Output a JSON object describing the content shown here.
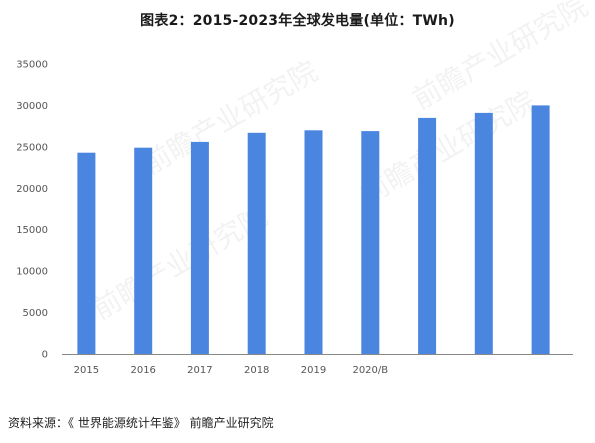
{
  "title": "图表2：2015-2023年全球发电量(单位：TWh)",
  "source_note": "资料来源：《 世界能源统计年鉴》 前瞻产业研究院",
  "watermark": "前瞻产业研究院",
  "colors": {
    "bar": "#4A86E0",
    "axis": "#888888",
    "tick_text": "#555555",
    "title": "#1a1a1a"
  },
  "chart_data": {
    "type": "bar",
    "title": "图表2：2015-2023年全球发电量(单位：TWh)",
    "xlabel": "",
    "ylabel": "",
    "ylim": [
      0,
      35000
    ],
    "yticks": [
      0,
      5000,
      10000,
      15000,
      20000,
      25000,
      30000,
      35000
    ],
    "grid": false,
    "categories": [
      "2015",
      "2016",
      "2017",
      "2018",
      "2019",
      "2020/B",
      "",
      "",
      ""
    ],
    "values": [
      24300,
      24900,
      25600,
      26700,
      27000,
      26900,
      28500,
      29100,
      30000
    ]
  }
}
